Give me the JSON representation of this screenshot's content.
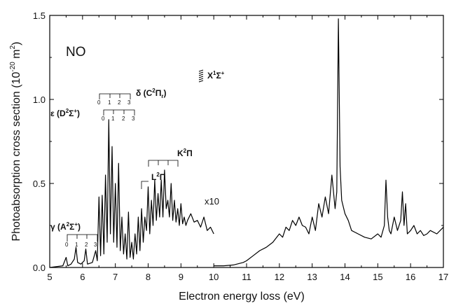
{
  "chart_data": {
    "type": "line",
    "title": "",
    "xlabel": "Electron energy loss (eV)",
    "ylabel": "Photoabsorption cross section (10",
    "ylabel_exp": "-20",
    "ylabel_unit": " m",
    "ylabel_unit_exp": "2",
    "ylabel_close": ")",
    "xlim": [
      5,
      17
    ],
    "ylim": [
      0.0,
      1.5
    ],
    "x_ticks": [
      5,
      6,
      7,
      8,
      9,
      10,
      11,
      12,
      13,
      14,
      15,
      16,
      17
    ],
    "y_ticks": [
      0.0,
      0.5,
      1.0,
      1.5
    ],
    "y_tick_labels": [
      "0.0",
      "0.5",
      "1.0",
      "1.5"
    ],
    "grid": false,
    "molecule_label": "NO",
    "scale_note": "x10",
    "series": [
      {
        "name": "",
        "x": [
          5.0,
          5.4,
          5.5,
          5.55,
          5.65,
          5.75,
          5.8,
          5.85,
          5.95,
          6.05,
          6.1,
          6.15,
          6.3,
          6.4,
          6.45,
          6.5,
          6.55,
          6.6,
          6.65,
          6.7,
          6.75,
          6.8,
          6.85,
          6.9,
          6.95,
          7.0,
          7.05,
          7.1,
          7.15,
          7.2,
          7.25,
          7.3,
          7.35,
          7.4,
          7.45,
          7.5,
          7.55,
          7.6,
          7.65,
          7.7,
          7.75,
          7.8,
          7.85,
          7.9,
          7.95,
          8.0,
          8.05,
          8.1,
          8.15,
          8.2,
          8.25,
          8.3,
          8.35,
          8.4,
          8.45,
          8.5,
          8.55,
          8.6,
          8.65,
          8.7,
          8.75,
          8.8,
          8.85,
          8.9,
          8.95,
          9.0,
          9.05,
          9.1,
          9.15,
          9.2,
          9.3,
          9.4,
          9.5,
          9.6,
          9.7,
          9.8,
          9.9,
          10.0
        ],
        "y": [
          0.0,
          0.01,
          0.06,
          0.01,
          0.02,
          0.05,
          0.12,
          0.03,
          0.02,
          0.04,
          0.11,
          0.02,
          0.03,
          0.1,
          0.04,
          0.42,
          0.07,
          0.43,
          0.08,
          0.55,
          0.15,
          0.88,
          0.2,
          0.72,
          0.15,
          0.5,
          0.12,
          0.62,
          0.1,
          0.3,
          0.08,
          0.2,
          0.05,
          0.33,
          0.06,
          0.15,
          0.05,
          0.2,
          0.08,
          0.3,
          0.1,
          0.35,
          0.15,
          0.3,
          0.22,
          0.48,
          0.2,
          0.4,
          0.25,
          0.52,
          0.28,
          0.44,
          0.3,
          0.52,
          0.3,
          0.58,
          0.35,
          0.4,
          0.3,
          0.5,
          0.28,
          0.4,
          0.27,
          0.35,
          0.25,
          0.38,
          0.26,
          0.3,
          0.25,
          0.28,
          0.32,
          0.27,
          0.28,
          0.24,
          0.3,
          0.22,
          0.24,
          0.2
        ]
      },
      {
        "name": "",
        "x": [
          10.0,
          10.3,
          10.6,
          10.9,
          11.0,
          11.2,
          11.4,
          11.6,
          11.8,
          12.0,
          12.1,
          12.2,
          12.3,
          12.4,
          12.5,
          12.6,
          12.7,
          12.8,
          12.9,
          13.0,
          13.1,
          13.2,
          13.3,
          13.4,
          13.5,
          13.6,
          13.7,
          13.75,
          13.8,
          13.85,
          13.9,
          14.0,
          14.1,
          14.2,
          14.4,
          14.6,
          14.8,
          15.0,
          15.1,
          15.2,
          15.25,
          15.3,
          15.35,
          15.4,
          15.5,
          15.6,
          15.7,
          15.75,
          15.8,
          15.85,
          15.9,
          16.0,
          16.1,
          16.2,
          16.3,
          16.4,
          16.5,
          16.6,
          16.8,
          17.0
        ],
        "y": [
          0.01,
          0.01,
          0.015,
          0.03,
          0.04,
          0.07,
          0.1,
          0.12,
          0.15,
          0.2,
          0.18,
          0.24,
          0.22,
          0.28,
          0.25,
          0.3,
          0.25,
          0.24,
          0.2,
          0.3,
          0.22,
          0.38,
          0.3,
          0.42,
          0.32,
          0.55,
          0.35,
          0.45,
          1.48,
          0.6,
          0.4,
          0.32,
          0.28,
          0.22,
          0.2,
          0.18,
          0.17,
          0.2,
          0.18,
          0.25,
          0.52,
          0.3,
          0.22,
          0.2,
          0.3,
          0.22,
          0.28,
          0.45,
          0.25,
          0.38,
          0.2,
          0.22,
          0.25,
          0.2,
          0.22,
          0.19,
          0.2,
          0.22,
          0.2,
          0.24
        ]
      }
    ]
  },
  "annotations": {
    "gamma_label": "γ (A",
    "gamma_sup": "2",
    "gamma_sym": "Σ",
    "gamma_sup2": "+",
    "gamma_close": ")",
    "epsilon_label": "ε (D",
    "epsilon_sup": "2",
    "epsilon_sym": "Σ",
    "epsilon_sup2": "+",
    "epsilon_close": ")",
    "delta_label": "δ (C",
    "delta_sup": "2",
    "delta_sym": "Π",
    "delta_sub": "r",
    "delta_close": ")",
    "l_label": "L",
    "l_sup": "2",
    "l_sym": "Π",
    "k_label": "K",
    "k_sup": "2",
    "k_sym": "Π",
    "x_label": "X",
    "x_sup": "1",
    "x_sym": "Σ",
    "x_sup2": "+",
    "progression_numbers": [
      "0",
      "1",
      "2",
      "3"
    ]
  }
}
